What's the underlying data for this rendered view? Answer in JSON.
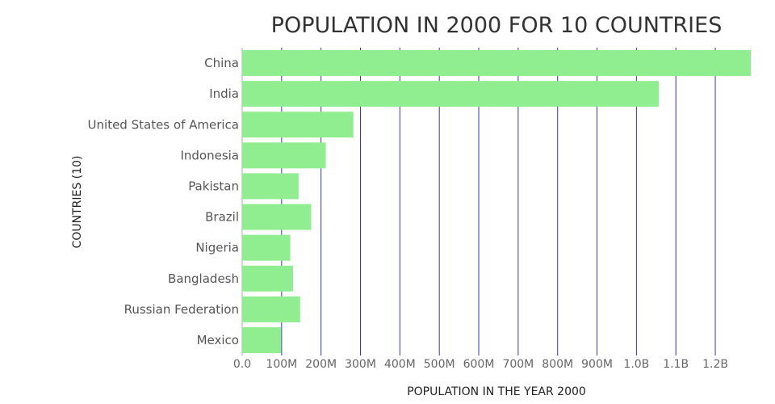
{
  "chart_data": {
    "type": "bar",
    "orientation": "horizontal",
    "title": "POPULATION IN 2000 FOR 10 COUNTRIES",
    "xlabel": "POPULATION IN THE YEAR 2000",
    "ylabel": "COUNTRIES (10)",
    "categories": [
      "China",
      "India",
      "United States of America",
      "Indonesia",
      "Pakistan",
      "Brazil",
      "Nigeria",
      "Bangladesh",
      "Russian Federation",
      "Mexico"
    ],
    "values": [
      1290000000,
      1057000000,
      282000000,
      212000000,
      143000000,
      175000000,
      122000000,
      129000000,
      147000000,
      99000000
    ],
    "xlim": [
      0,
      1290000000
    ],
    "xticks": [
      0,
      100000000,
      200000000,
      300000000,
      400000000,
      500000000,
      600000000,
      700000000,
      800000000,
      900000000,
      1000000000,
      1100000000,
      1200000000
    ],
    "xtick_labels": [
      "0.0",
      "100M",
      "200M",
      "300M",
      "400M",
      "500M",
      "600M",
      "700M",
      "800M",
      "900M",
      "1.0B",
      "1.1B",
      "1.2B"
    ],
    "grid": true,
    "colors": {
      "bar": "#90ee90",
      "grid": "#3333cc"
    }
  }
}
